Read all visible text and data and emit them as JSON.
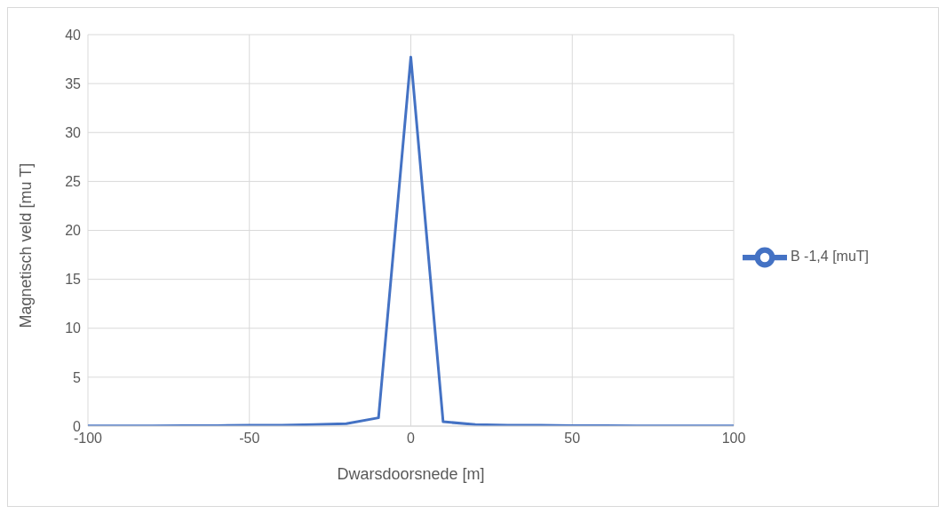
{
  "chart_data": {
    "type": "line",
    "xlabel": "Dwarsdoorsnede [m]",
    "ylabel": "Magnetisch veld [mu T]",
    "x": [
      -100,
      -90,
      -80,
      -70,
      -60,
      -50,
      -40,
      -30,
      -20,
      -10,
      0,
      10,
      20,
      30,
      40,
      50,
      60,
      70,
      80,
      90,
      100
    ],
    "series": [
      {
        "name": "B -1,4 [muT]",
        "color": "#4472c4",
        "values": [
          0.02,
          0.03,
          0.03,
          0.04,
          0.05,
          0.08,
          0.1,
          0.15,
          0.25,
          0.85,
          37.7,
          0.45,
          0.15,
          0.1,
          0.1,
          0.05,
          0.04,
          0.03,
          0.03,
          0.02,
          0.02
        ]
      }
    ],
    "xlim": [
      -100,
      100
    ],
    "xticks": [
      -100,
      -50,
      0,
      50,
      100
    ],
    "ylim": [
      0,
      40
    ],
    "yticks": [
      0,
      5,
      10,
      15,
      20,
      25,
      30,
      35,
      40
    ],
    "grid": true,
    "legend": "right",
    "marker": "none",
    "line_style": "solid"
  }
}
